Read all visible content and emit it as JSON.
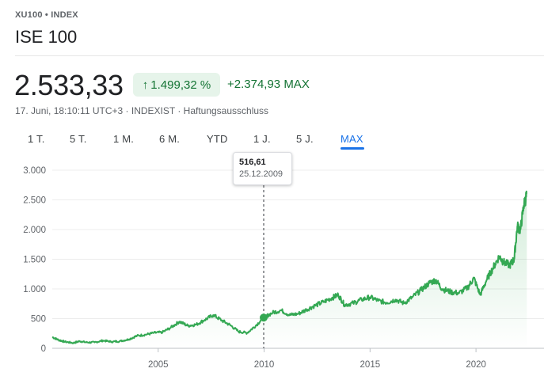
{
  "header": {
    "ticker": "XU100 • INDEX",
    "name": "ISE 100"
  },
  "quote": {
    "price": "2.533,33",
    "pct_change": "1.499,32 %",
    "pct_arrow": "↑",
    "abs_change": "+2.374,93 MAX",
    "meta": "17. Juni, 18:10:11 UTC+3 · INDEXIST · Haftungsausschluss"
  },
  "tabs": [
    {
      "label": "1 T."
    },
    {
      "label": "5 T."
    },
    {
      "label": "1 M."
    },
    {
      "label": "6 M."
    },
    {
      "label": "YTD"
    },
    {
      "label": "1 J."
    },
    {
      "label": "5 J."
    },
    {
      "label": "MAX",
      "active": true
    }
  ],
  "tooltip": {
    "value": "516,61",
    "date": "25.12.2009"
  },
  "colors": {
    "line": "#34a853",
    "positive": "#137333",
    "accent": "#1a73e8"
  },
  "chart_data": {
    "type": "area",
    "y_tick_labels": [
      "0",
      "500",
      "1.000",
      "1.500",
      "2.000",
      "2.500",
      "3.000"
    ],
    "y_ticks": [
      0,
      500,
      1000,
      1500,
      2000,
      2500,
      3000
    ],
    "x_tick_labels": [
      "2005",
      "2010",
      "2015",
      "2020"
    ],
    "x_ticks": [
      2005,
      2010,
      2015,
      2020
    ],
    "xlim": [
      2000.0,
      2022.5
    ],
    "ylim": [
      0,
      3000
    ],
    "grid": true,
    "highlight": {
      "x": 2009.98,
      "y": 516.61
    },
    "series": [
      {
        "x": [
          2000.0,
          2000.3,
          2000.6,
          2001.0,
          2001.3,
          2001.6,
          2002.0,
          2002.4,
          2002.8,
          2003.2,
          2003.6,
          2004.0,
          2004.4,
          2004.8,
          2005.2,
          2005.6,
          2006.0,
          2006.4,
          2006.8,
          2007.2,
          2007.6,
          2008.0,
          2008.4,
          2008.8,
          2009.2,
          2009.6,
          2009.98,
          2010.4,
          2010.8,
          2011.2,
          2011.6,
          2012.0,
          2012.4,
          2012.8,
          2013.2,
          2013.5,
          2013.8,
          2014.2,
          2014.6,
          2015.0,
          2015.4,
          2015.8,
          2016.2,
          2016.6,
          2017.0,
          2017.4,
          2017.8,
          2018.1,
          2018.4,
          2018.8,
          2019.2,
          2019.6,
          2019.9,
          2020.2,
          2020.5,
          2020.8,
          2021.1,
          2021.3,
          2021.6,
          2021.8,
          2021.95,
          2022.1,
          2022.25,
          2022.4
        ],
        "y": [
          190,
          140,
          110,
          90,
          120,
          100,
          100,
          130,
          110,
          120,
          150,
          210,
          230,
          260,
          270,
          350,
          450,
          380,
          400,
          480,
          560,
          470,
          390,
          280,
          260,
          380,
          516.61,
          600,
          640,
          560,
          580,
          650,
          720,
          780,
          850,
          900,
          730,
          760,
          820,
          860,
          800,
          770,
          820,
          760,
          860,
          980,
          1100,
          1150,
          1000,
          950,
          930,
          1020,
          1180,
          900,
          1150,
          1350,
          1550,
          1450,
          1400,
          1500,
          2050,
          2000,
          2400,
          2600
        ]
      }
    ]
  }
}
